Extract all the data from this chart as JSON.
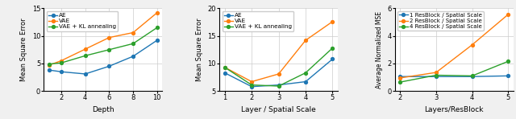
{
  "plot1": {
    "x": [
      1,
      2,
      4,
      6,
      8,
      10
    ],
    "ae": [
      3.8,
      3.5,
      3.1,
      4.5,
      6.3,
      9.2
    ],
    "vae": [
      4.7,
      5.5,
      7.6,
      9.7,
      10.6,
      14.2
    ],
    "vae_kl": [
      4.9,
      5.1,
      6.4,
      7.5,
      8.6,
      11.5
    ],
    "xlabel": "Depth",
    "ylabel": "Mean Square Error",
    "ylim": [
      0,
      15
    ],
    "yticks": [
      0,
      5,
      10,
      15
    ],
    "xticks": [
      2,
      4,
      6,
      8,
      10
    ]
  },
  "plot2": {
    "x": [
      1,
      2,
      3,
      4,
      5
    ],
    "ae": [
      8.3,
      5.8,
      6.1,
      6.7,
      10.8
    ],
    "vae": [
      9.3,
      6.7,
      8.1,
      14.2,
      17.6
    ],
    "vae_kl": [
      9.3,
      6.1,
      5.9,
      8.3,
      12.8
    ],
    "xlabel": "Layer / Spatial Scale",
    "ylabel": "Mean Square Error",
    "ylim": [
      5,
      20
    ],
    "yticks": [
      5,
      10,
      15,
      20
    ],
    "xticks": [
      1,
      2,
      3,
      4,
      5
    ]
  },
  "plot3": {
    "x": [
      2,
      3,
      4,
      5
    ],
    "res1": [
      1.05,
      1.05,
      1.05,
      1.1
    ],
    "res2": [
      0.95,
      1.35,
      3.35,
      5.55
    ],
    "res4": [
      0.65,
      1.15,
      1.1,
      2.15
    ],
    "xlabel": "Layers/ResBlock",
    "ylabel": "Average Normalized MSE",
    "ylim": [
      0,
      6
    ],
    "yticks": [
      0,
      2,
      4,
      6
    ],
    "xticks": [
      2,
      3,
      4,
      5
    ]
  },
  "colors": {
    "ae": "#1f77b4",
    "vae": "#ff7f0e",
    "vae_kl": "#2ca02c"
  },
  "legend1": [
    "AE",
    "VAE",
    "VAE + KL annealing"
  ],
  "legend3": [
    "1 ResBlock / Spatial Scale",
    "2 ResBlock / Spatial Scale",
    "4 ResBlock / Spatial Scale"
  ],
  "fig_facecolor": "#f0f0f0",
  "axes_facecolor": "#ffffff"
}
